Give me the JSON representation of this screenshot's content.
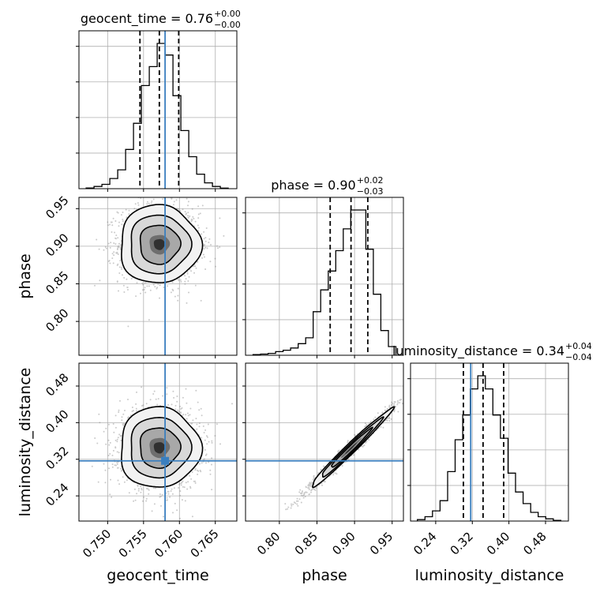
{
  "chart_data": {
    "type": "corner",
    "grid": true,
    "truth_color": "#3a7fbf",
    "params": [
      {
        "name": "geocent_time",
        "axis_label": "geocent_time",
        "title_prefix": "geocent_time = ",
        "title_value": "0.76",
        "title_plus": "+0.00",
        "title_minus": "−0.00",
        "range": [
          0.746,
          0.768
        ],
        "ticks": [
          0.75,
          0.755,
          0.76,
          0.765
        ],
        "tick_labels": [
          "0.750",
          "0.755",
          "0.760",
          "0.765"
        ],
        "quantiles": [
          0.7545,
          0.7572,
          0.7599
        ],
        "truth": 0.758,
        "hist_edges": [
          0.747,
          0.7481,
          0.7492,
          0.7503,
          0.7514,
          0.7525,
          0.7536,
          0.7547,
          0.7558,
          0.7569,
          0.758,
          0.7591,
          0.7602,
          0.7613,
          0.7624,
          0.7635,
          0.7646,
          0.7657,
          0.7668
        ],
        "hist_counts": [
          0.005,
          0.015,
          0.03,
          0.07,
          0.13,
          0.27,
          0.45,
          0.71,
          0.84,
          1.0,
          0.92,
          0.64,
          0.4,
          0.22,
          0.1,
          0.04,
          0.015,
          0.004
        ]
      },
      {
        "name": "phase",
        "axis_label": "phase",
        "title_prefix": "phase = ",
        "title_value": "0.90",
        "title_plus": "+0.02",
        "title_minus": "−0.03",
        "range": [
          0.755,
          0.965
        ],
        "ticks": [
          0.8,
          0.85,
          0.9,
          0.95
        ],
        "tick_labels": [
          "0.80",
          "0.85",
          "0.90",
          "0.95"
        ],
        "quantiles": [
          0.8676,
          0.8953,
          0.9176
        ],
        "truth": null,
        "hist_edges": [
          0.765,
          0.775,
          0.785,
          0.795,
          0.805,
          0.815,
          0.825,
          0.835,
          0.845,
          0.855,
          0.865,
          0.875,
          0.885,
          0.895,
          0.905,
          0.915,
          0.925,
          0.935,
          0.945,
          0.955
        ],
        "hist_counts": [
          0.005,
          0.008,
          0.013,
          0.025,
          0.035,
          0.05,
          0.08,
          0.12,
          0.3,
          0.45,
          0.58,
          0.72,
          0.87,
          1.0,
          1.0,
          0.73,
          0.42,
          0.17,
          0.06
        ]
      },
      {
        "name": "luminosity_distance",
        "axis_label": "luminosity_distance",
        "title_prefix": "luminosity_distance = ",
        "title_value": "0.34",
        "title_plus": "+0.04",
        "title_minus": "−0.04",
        "range": [
          0.185,
          0.53
        ],
        "ticks": [
          0.24,
          0.32,
          0.4,
          0.48
        ],
        "tick_labels": [
          "0.24",
          "0.32",
          "0.40",
          "0.48"
        ],
        "quantiles": [
          0.3005,
          0.3435,
          0.3885
        ],
        "truth": 0.3165,
        "hist_edges": [
          0.2,
          0.2165,
          0.233,
          0.2495,
          0.266,
          0.2825,
          0.299,
          0.3155,
          0.332,
          0.3485,
          0.365,
          0.3815,
          0.398,
          0.4145,
          0.431,
          0.4475,
          0.464,
          0.4805,
          0.497,
          0.5135
        ],
        "hist_counts": [
          0.01,
          0.03,
          0.07,
          0.14,
          0.34,
          0.56,
          0.73,
          0.91,
          1.0,
          0.91,
          0.73,
          0.57,
          0.33,
          0.2,
          0.12,
          0.06,
          0.03,
          0.015,
          0.005
        ]
      }
    ],
    "pairs": [
      {
        "x": "geocent_time",
        "y": "phase",
        "mean": [
          0.7572,
          0.9025
        ],
        "sigma": [
          0.0028,
          0.026
        ],
        "rho": 0.0,
        "truth": [
          0.758,
          null
        ],
        "contour_levels": [
          0.5,
          1.0,
          1.5,
          2.0
        ]
      },
      {
        "x": "geocent_time",
        "y": "luminosity_distance",
        "mean": [
          0.7572,
          0.3455
        ],
        "sigma": [
          0.0028,
          0.044
        ],
        "rho": 0.0,
        "truth": [
          0.758,
          0.3165
        ],
        "contour_levels": [
          0.5,
          1.0,
          1.5,
          2.0
        ]
      },
      {
        "x": "phase",
        "y": "luminosity_distance",
        "mean": [
          0.895,
          0.3435
        ],
        "sigma": [
          0.027,
          0.043
        ],
        "rho": 0.985,
        "truth": [
          null,
          0.3165
        ],
        "contour_levels": [
          0.5,
          1.0,
          1.5,
          2.0
        ]
      }
    ]
  }
}
